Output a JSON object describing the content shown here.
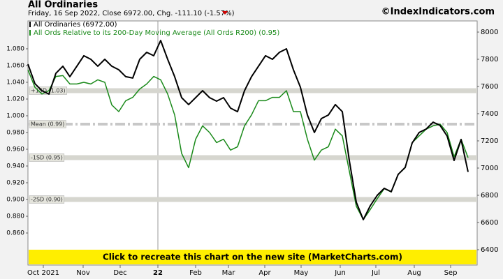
{
  "chart_data": {
    "type": "line",
    "title": "All Ordinaries",
    "subtitle": "Friday, 16 Sep 2022, Close 6972.00, Chg. -111.10 (-1.57%)",
    "watermark": "©IndexIndicators.com",
    "banner": "Click to recreate this chart on the new site (MarketCharts.com)",
    "xlim": [
      0,
      64.3
    ],
    "xticks": [
      {
        "value": 2.2,
        "label": "Oct 2021"
      },
      {
        "value": 7.9,
        "label": "Nov"
      },
      {
        "value": 13.2,
        "label": "Dec"
      },
      {
        "value": 18.6,
        "label": "22",
        "year_start": true
      },
      {
        "value": 24,
        "label": "Feb"
      },
      {
        "value": 28.7,
        "label": "Mar"
      },
      {
        "value": 33.9,
        "label": "Apr"
      },
      {
        "value": 39.1,
        "label": "May"
      },
      {
        "value": 44.7,
        "label": "Jun"
      },
      {
        "value": 49.8,
        "label": "Jul"
      },
      {
        "value": 55.3,
        "label": "Aug"
      },
      {
        "value": 60.5,
        "label": "Sep"
      }
    ],
    "ylim": [
      0.8217,
      1.1133
    ],
    "yticks": [
      {
        "value": 0.86,
        "label": "0.860"
      },
      {
        "value": 0.88,
        "label": "0.880"
      },
      {
        "value": 0.9,
        "label": "0.900"
      },
      {
        "value": 0.92,
        "label": "0.920"
      },
      {
        "value": 0.94,
        "label": "0.940"
      },
      {
        "value": 0.96,
        "label": "0.960"
      },
      {
        "value": 0.98,
        "label": "0.980"
      },
      {
        "value": 1.0,
        "label": "1.000"
      },
      {
        "value": 1.02,
        "label": "1.020"
      },
      {
        "value": 1.04,
        "label": "1.040"
      },
      {
        "value": 1.06,
        "label": "1.060"
      },
      {
        "value": 1.08,
        "label": "1.080"
      }
    ],
    "y2lim": [
      6287,
      8082
    ],
    "y2ticks": [
      6400,
      6600,
      6800,
      7000,
      7200,
      7400,
      7600,
      7800,
      8000
    ],
    "bands": [
      {
        "value": 1.03,
        "label": "+1SD (1.03)"
      },
      {
        "value": 0.99,
        "label": "Mean (0.99)"
      },
      {
        "value": 0.95,
        "label": "-1SD (0.95)"
      },
      {
        "value": 0.9,
        "label": "-2SD (0.90)"
      }
    ],
    "series": [
      {
        "name": "All Ordinaries (6972.00)",
        "color": "#000000",
        "axis": "y2",
        "values": [
          7764,
          7621,
          7569,
          7544,
          7697,
          7749,
          7672,
          7749,
          7826,
          7800,
          7749,
          7800,
          7749,
          7723,
          7672,
          7662,
          7800,
          7851,
          7826,
          7938,
          7800,
          7672,
          7518,
          7467,
          7518,
          7569,
          7518,
          7492,
          7518,
          7441,
          7415,
          7569,
          7672,
          7749,
          7826,
          7800,
          7851,
          7877,
          7723,
          7595,
          7390,
          7262,
          7364,
          7390,
          7467,
          7415,
          7056,
          6749,
          6621,
          6723,
          6800,
          6851,
          6826,
          6954,
          7005,
          7185,
          7262,
          7287,
          7338,
          7313,
          7236,
          7056,
          7210,
          6972
        ]
      },
      {
        "name": "All Ords Relative to its 200-Day Moving Average (All Ords R200) (0.95)",
        "color": "#1a8a1a",
        "values": [
          1.055,
          1.034,
          1.026,
          1.03,
          1.047,
          1.048,
          1.038,
          1.038,
          1.04,
          1.038,
          1.043,
          1.04,
          1.013,
          1.005,
          1.018,
          1.022,
          1.032,
          1.038,
          1.047,
          1.043,
          1.026,
          1.001,
          0.955,
          0.938,
          0.972,
          0.988,
          0.98,
          0.968,
          0.972,
          0.959,
          0.963,
          0.988,
          1.001,
          1.018,
          1.018,
          1.022,
          1.022,
          1.03,
          1.005,
          1.005,
          0.972,
          0.947,
          0.959,
          0.963,
          0.984,
          0.976,
          0.934,
          0.892,
          0.876,
          0.888,
          0.901,
          0.913,
          0.909,
          0.93,
          0.938,
          0.968,
          0.976,
          0.984,
          0.988,
          0.99,
          0.98,
          0.951,
          0.972,
          0.95
        ]
      }
    ]
  }
}
